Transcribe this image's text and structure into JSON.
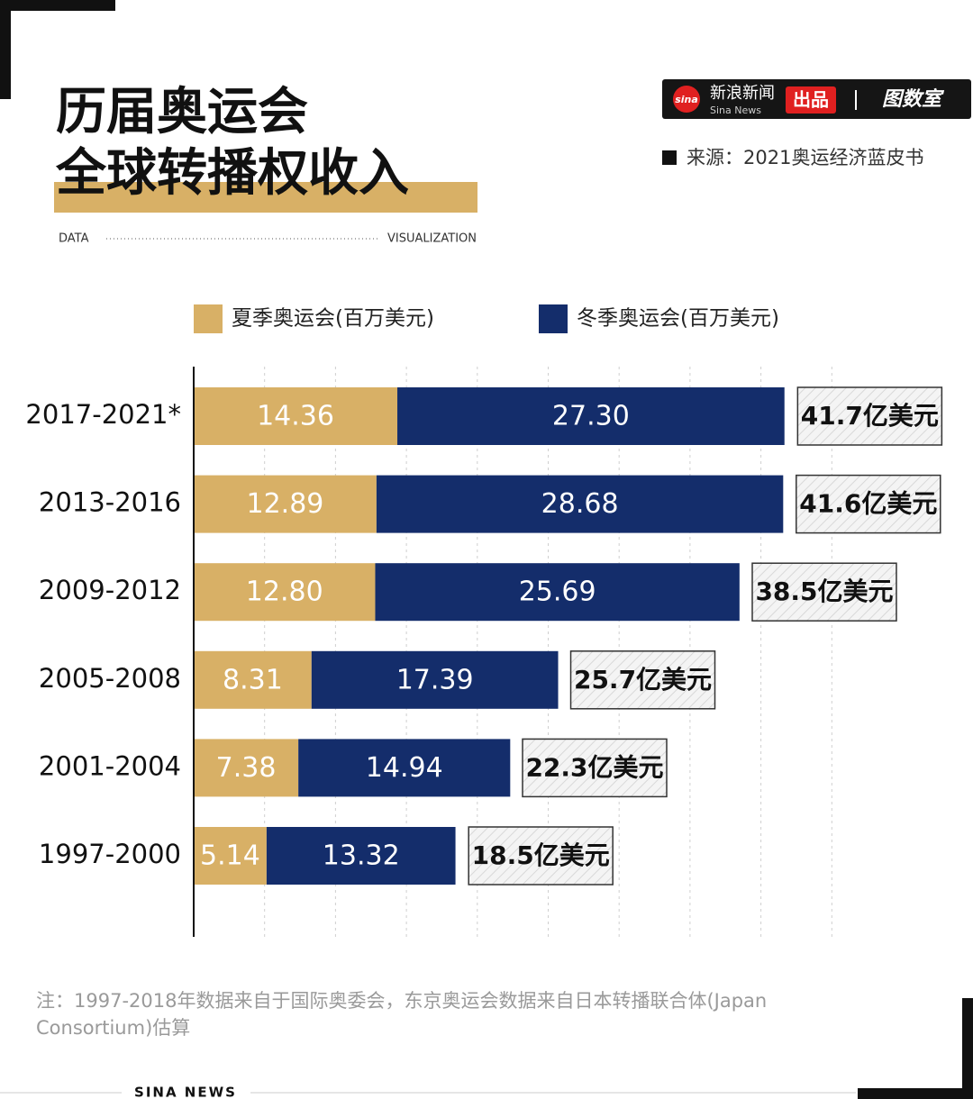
{
  "header": {
    "title_line1": "历届奥运会",
    "title_line2": "全球转播权收入",
    "tag_left": "DATA",
    "tag_right": "VISUALIZATION",
    "source": "来源：2021奥运经济蓝皮书"
  },
  "brand": {
    "name": "新浪新闻",
    "en": "Sina News",
    "tag": "出品",
    "lab": "图数室",
    "logo": "sina"
  },
  "chart_data": {
    "type": "stacked-hbar",
    "categories": [
      "2017-2021*",
      "2013-2016",
      "2009-2012",
      "2005-2008",
      "2001-2004",
      "1997-2000"
    ],
    "series": [
      {
        "name": "夏季奥运会(百万美元)",
        "color": "#d8b066",
        "values": [
          14.36,
          12.89,
          12.8,
          8.31,
          7.38,
          5.14
        ],
        "value_labels": [
          "14.36",
          "12.89",
          "12.80",
          "8.31",
          "7.38",
          "5.14"
        ]
      },
      {
        "name": "冬季奥运会(百万美元)",
        "color": "#142d6b",
        "values": [
          27.3,
          28.68,
          25.69,
          17.39,
          14.94,
          13.32
        ],
        "value_labels": [
          "27.30",
          "28.68",
          "25.69",
          "17.39",
          "14.94",
          "13.32"
        ]
      }
    ],
    "totals": [
      41.7,
      41.6,
      38.5,
      25.7,
      22.3,
      18.5
    ],
    "total_labels": [
      "41.7亿美元",
      "41.6亿美元",
      "38.5亿美元",
      "25.7亿美元",
      "22.3亿美元",
      "18.5亿美元"
    ],
    "xlim": [
      0,
      50
    ],
    "xticks": [
      5,
      10,
      15,
      20,
      25,
      30,
      35,
      40,
      45
    ],
    "grid": true
  },
  "footer": {
    "note": "注：1997-2018年数据来自于国际奥委会，东京奥运会数据来自日本转播联合体(Japan Consortium)估算",
    "brand": "SINA NEWS"
  }
}
